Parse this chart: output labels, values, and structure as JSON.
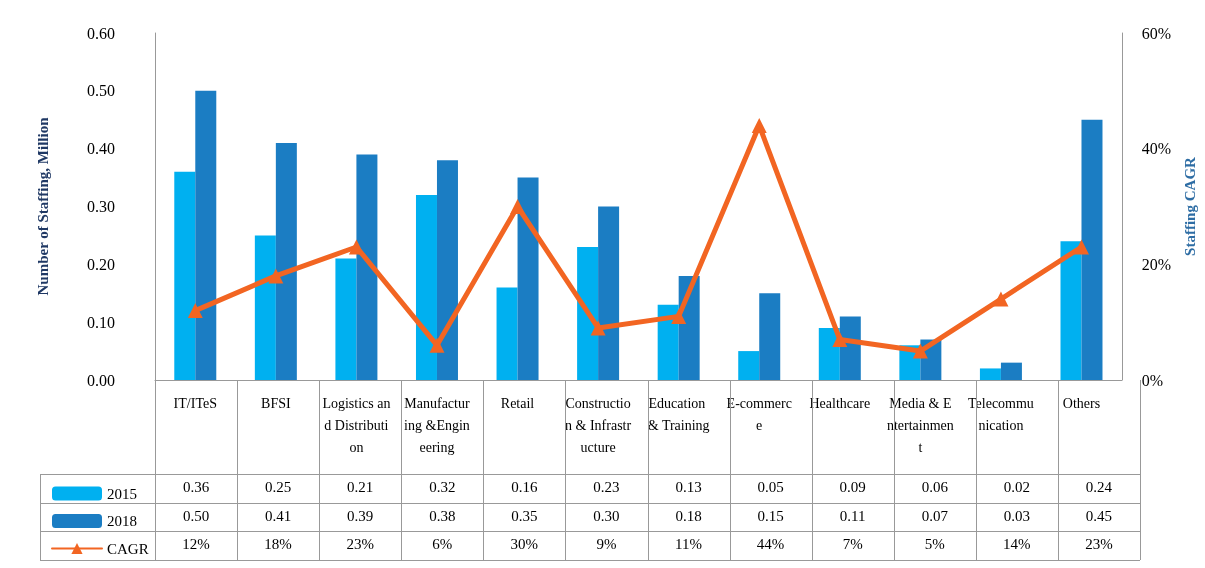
{
  "chart_data": {
    "type": "bar",
    "categories": [
      "IT/ITeS",
      "BFSI",
      "Logistics and Distribution",
      "Manufacturing &Engineering",
      "Retail",
      "Construction & Infrastructure",
      "Education & Training",
      "E-commerce",
      "Healthcare",
      "Media & Entertainment",
      "Telecommunication",
      "Others"
    ],
    "series": [
      {
        "name": "2015",
        "color": "#00b0f0",
        "values": [
          0.36,
          0.25,
          0.21,
          0.32,
          0.16,
          0.23,
          0.13,
          0.05,
          0.09,
          0.06,
          0.02,
          0.24
        ],
        "value_labels": [
          "0.36",
          "0.25",
          "0.21",
          "0.32",
          "0.16",
          "0.23",
          "0.13",
          "0.05",
          "0.09",
          "0.06",
          "0.02",
          "0.24"
        ]
      },
      {
        "name": "2018",
        "color": "#1b7dc3",
        "values": [
          0.5,
          0.41,
          0.39,
          0.38,
          0.35,
          0.3,
          0.18,
          0.15,
          0.11,
          0.07,
          0.03,
          0.45
        ],
        "value_labels": [
          "0.50",
          "0.41",
          "0.39",
          "0.38",
          "0.35",
          "0.30",
          "0.18",
          "0.15",
          "0.11",
          "0.07",
          "0.03",
          "0.45"
        ]
      },
      {
        "name": "CAGR",
        "type": "line",
        "axis": "y2",
        "color": "#f26522",
        "values": [
          12,
          18,
          23,
          6,
          30,
          9,
          11,
          44,
          7,
          5,
          14,
          23
        ],
        "value_labels": [
          "12%",
          "18%",
          "23%",
          "6%",
          "30%",
          "9%",
          "11%",
          "44%",
          "7%",
          "5%",
          "14%",
          "23%"
        ]
      }
    ],
    "ylabel": "Number of Staffing, Million",
    "y2label": "Staffing CAGR",
    "ylim": [
      0,
      0.6
    ],
    "yticks": [
      {
        "value": 0,
        "label": "0.00"
      },
      {
        "value": 0.1,
        "label": "0.10"
      },
      {
        "value": 0.2,
        "label": "0.20"
      },
      {
        "value": 0.3,
        "label": "0.30"
      },
      {
        "value": 0.4,
        "label": "0.40"
      },
      {
        "value": 0.5,
        "label": "0.50"
      },
      {
        "value": 0.6,
        "label": "0.60"
      }
    ],
    "y2lim": [
      0,
      60
    ],
    "y2ticks": [
      {
        "value": 0,
        "label": "0%"
      },
      {
        "value": 20,
        "label": "20%"
      },
      {
        "value": 40,
        "label": "40%"
      },
      {
        "value": 60,
        "label": "60%"
      }
    ],
    "marker": "triangle",
    "line_style": "solid",
    "grid": false,
    "legend": "bottom"
  }
}
